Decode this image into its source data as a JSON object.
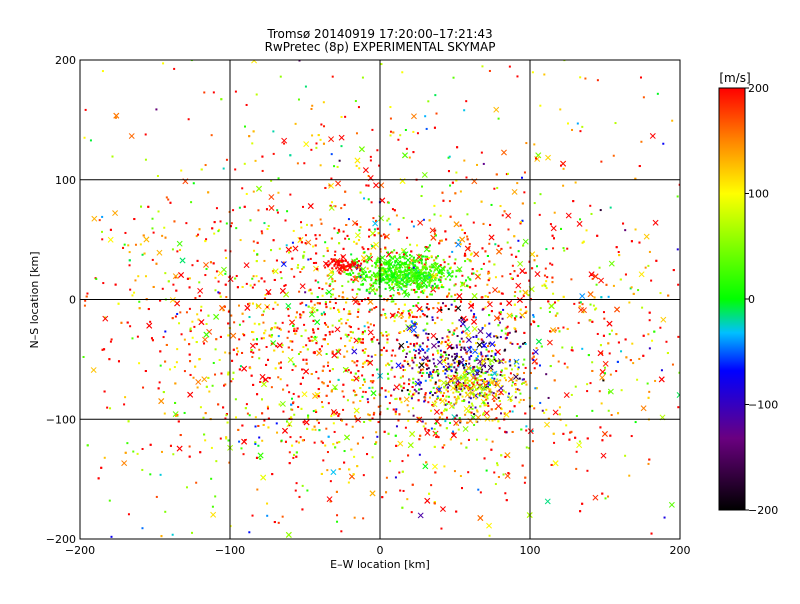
{
  "chart_data": {
    "type": "scatter",
    "title_line1": "Tromsø 20140919 17:20:00–17:21:43",
    "title_line2": "RwPretec (8p) EXPERIMENTAL SKYMAP",
    "xlabel": "E–W location [km]",
    "ylabel": "N–S location [km]",
    "xlim": [
      -200,
      200
    ],
    "ylim": [
      -200,
      200
    ],
    "x_ticks": [
      -200,
      -100,
      0,
      100,
      200
    ],
    "y_ticks": [
      -200,
      -100,
      0,
      100,
      200
    ],
    "x_tick_labels": [
      "−200",
      "−100",
      "0",
      "100",
      "200"
    ],
    "y_tick_labels": [
      "−200",
      "−100",
      "0",
      "100",
      "200"
    ],
    "grid": true,
    "colorbar": {
      "label": "[m/s]",
      "range": [
        -200,
        200
      ],
      "ticks": [
        200,
        100,
        0,
        -100,
        -200
      ],
      "tick_labels": [
        "200",
        "100",
        "0",
        "−100",
        "−200"
      ]
    },
    "point_clusters": [
      {
        "cx": 0,
        "cy": -30,
        "sx": 85,
        "sy": 65,
        "count": 2600,
        "velocity_mean": 160,
        "velocity_spread": 80
      },
      {
        "cx": 15,
        "cy": 22,
        "sx": 18,
        "sy": 8,
        "count": 600,
        "velocity_mean": 20,
        "velocity_spread": 15
      },
      {
        "cx": 55,
        "cy": -55,
        "sx": 20,
        "sy": 20,
        "count": 350,
        "velocity_mean": -120,
        "velocity_spread": 60
      },
      {
        "cx": 60,
        "cy": -75,
        "sx": 18,
        "sy": 12,
        "count": 250,
        "velocity_mean": 100,
        "velocity_spread": 40
      },
      {
        "cx": -25,
        "cy": 30,
        "sx": 6,
        "sy": 3,
        "count": 80,
        "velocity_mean": 200,
        "velocity_spread": 5
      },
      {
        "cx": 0,
        "cy": 0,
        "sx": 120,
        "sy": 110,
        "count": 900,
        "velocity_mean": 120,
        "velocity_spread": 110
      }
    ]
  }
}
